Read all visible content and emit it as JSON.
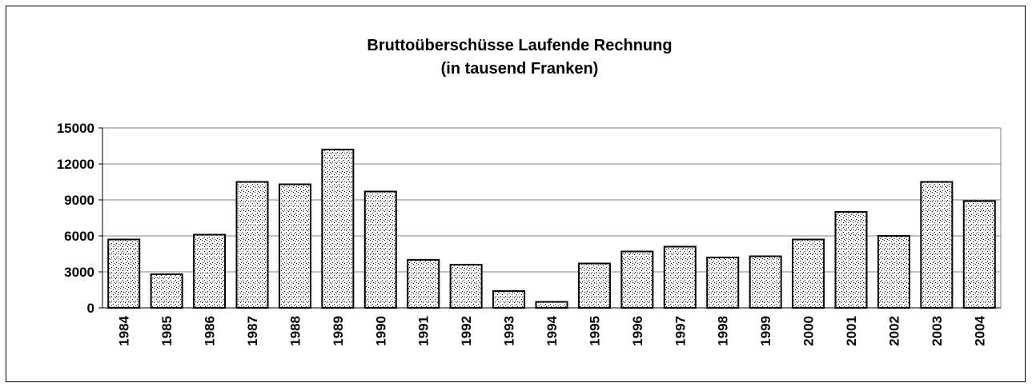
{
  "chart_data": {
    "type": "bar",
    "title": "Bruttoüberschüsse Laufende Rechnung",
    "subtitle": "(in tausend Franken)",
    "categories": [
      "1984",
      "1985",
      "1986",
      "1987",
      "1988",
      "1989",
      "1990",
      "1991",
      "1992",
      "1993",
      "1994",
      "1995",
      "1996",
      "1997",
      "1998",
      "1999",
      "2000",
      "2001",
      "2002",
      "2003",
      "2004"
    ],
    "values": [
      5700,
      2800,
      6100,
      10500,
      10300,
      13200,
      9700,
      4000,
      3600,
      1400,
      500,
      3700,
      4700,
      5100,
      4200,
      4300,
      5700,
      8000,
      6000,
      10500,
      8900
    ],
    "ylim": [
      0,
      15000
    ],
    "yticks": [
      0,
      3000,
      6000,
      9000,
      12000,
      15000
    ],
    "grid": true
  }
}
